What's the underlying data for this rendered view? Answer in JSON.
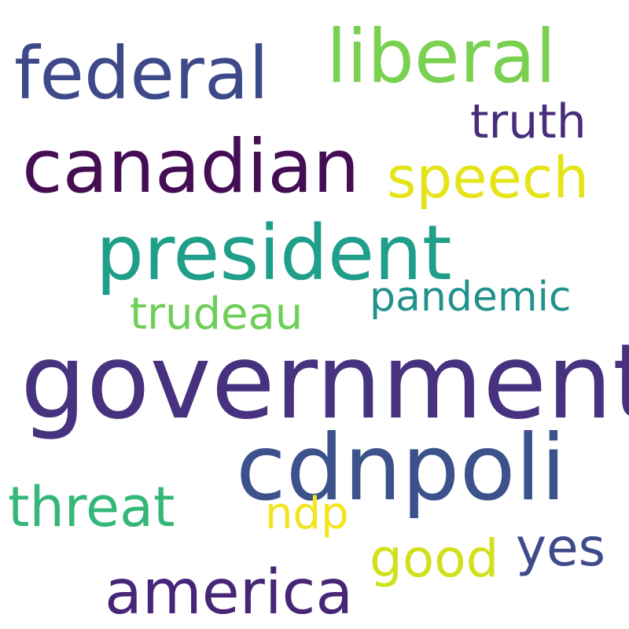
{
  "word_cloud": {
    "background": "#ffffff",
    "words": [
      {
        "text": "government",
        "color": "#46327e"
      },
      {
        "text": "cdnpoli",
        "color": "#3b528b"
      },
      {
        "text": "canadian",
        "color": "#440d54"
      },
      {
        "text": "federal",
        "color": "#3e4989"
      },
      {
        "text": "liberal",
        "color": "#7ad151"
      },
      {
        "text": "president",
        "color": "#1f9e89"
      },
      {
        "text": "america",
        "color": "#482677"
      },
      {
        "text": "speech",
        "color": "#e5e419"
      },
      {
        "text": "threat",
        "color": "#35b779"
      },
      {
        "text": "truth",
        "color": "#472d7b"
      },
      {
        "text": "pandemic",
        "color": "#21918c"
      },
      {
        "text": "trudeau",
        "color": "#6ece58"
      },
      {
        "text": "yes",
        "color": "#3e4a89"
      },
      {
        "text": "good",
        "color": "#d0e11c"
      },
      {
        "text": "ndp",
        "color": "#f2e51d"
      }
    ]
  }
}
